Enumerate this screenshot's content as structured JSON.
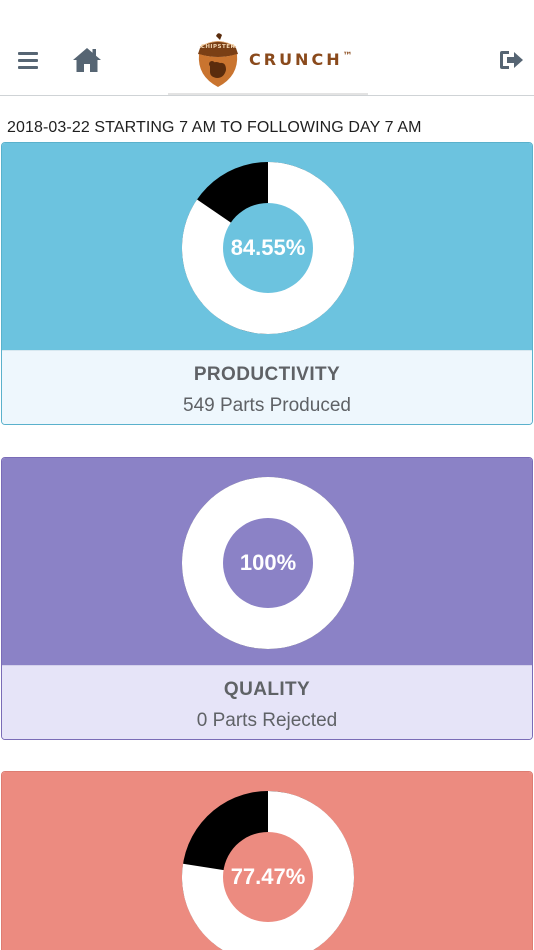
{
  "header": {
    "menu_icon": "hamburger-menu-icon",
    "home_icon": "home-icon",
    "logout_icon": "sign-out-icon",
    "logo": {
      "brand_name": "CRUNCH",
      "trademark": "™",
      "badge_text": "CHIPSTER"
    },
    "colors": {
      "icon": "#566573",
      "brand": "#8a4a1c"
    }
  },
  "period_label": "2018-03-22 STARTING 7 AM TO FOLLOWING DAY 7 AM",
  "metrics": [
    {
      "key": "productivity",
      "title": "PRODUCTIVITY",
      "subtitle": "549 Parts Produced",
      "value_label": "84.55%",
      "percent": 84.55,
      "color": "#6cc3df",
      "bottom_color": "#eef7fd"
    },
    {
      "key": "quality",
      "title": "QUALITY",
      "subtitle": "0 Parts Rejected",
      "value_label": "100%",
      "percent": 100,
      "color": "#8b82c6",
      "bottom_color": "#e6e4f8"
    },
    {
      "key": "third-metric",
      "value_label": "77.47%",
      "percent": 77.47,
      "color": "#ec8b80"
    }
  ],
  "donut_colors": {
    "filled": "#ffffff",
    "remaining": "#000000"
  }
}
